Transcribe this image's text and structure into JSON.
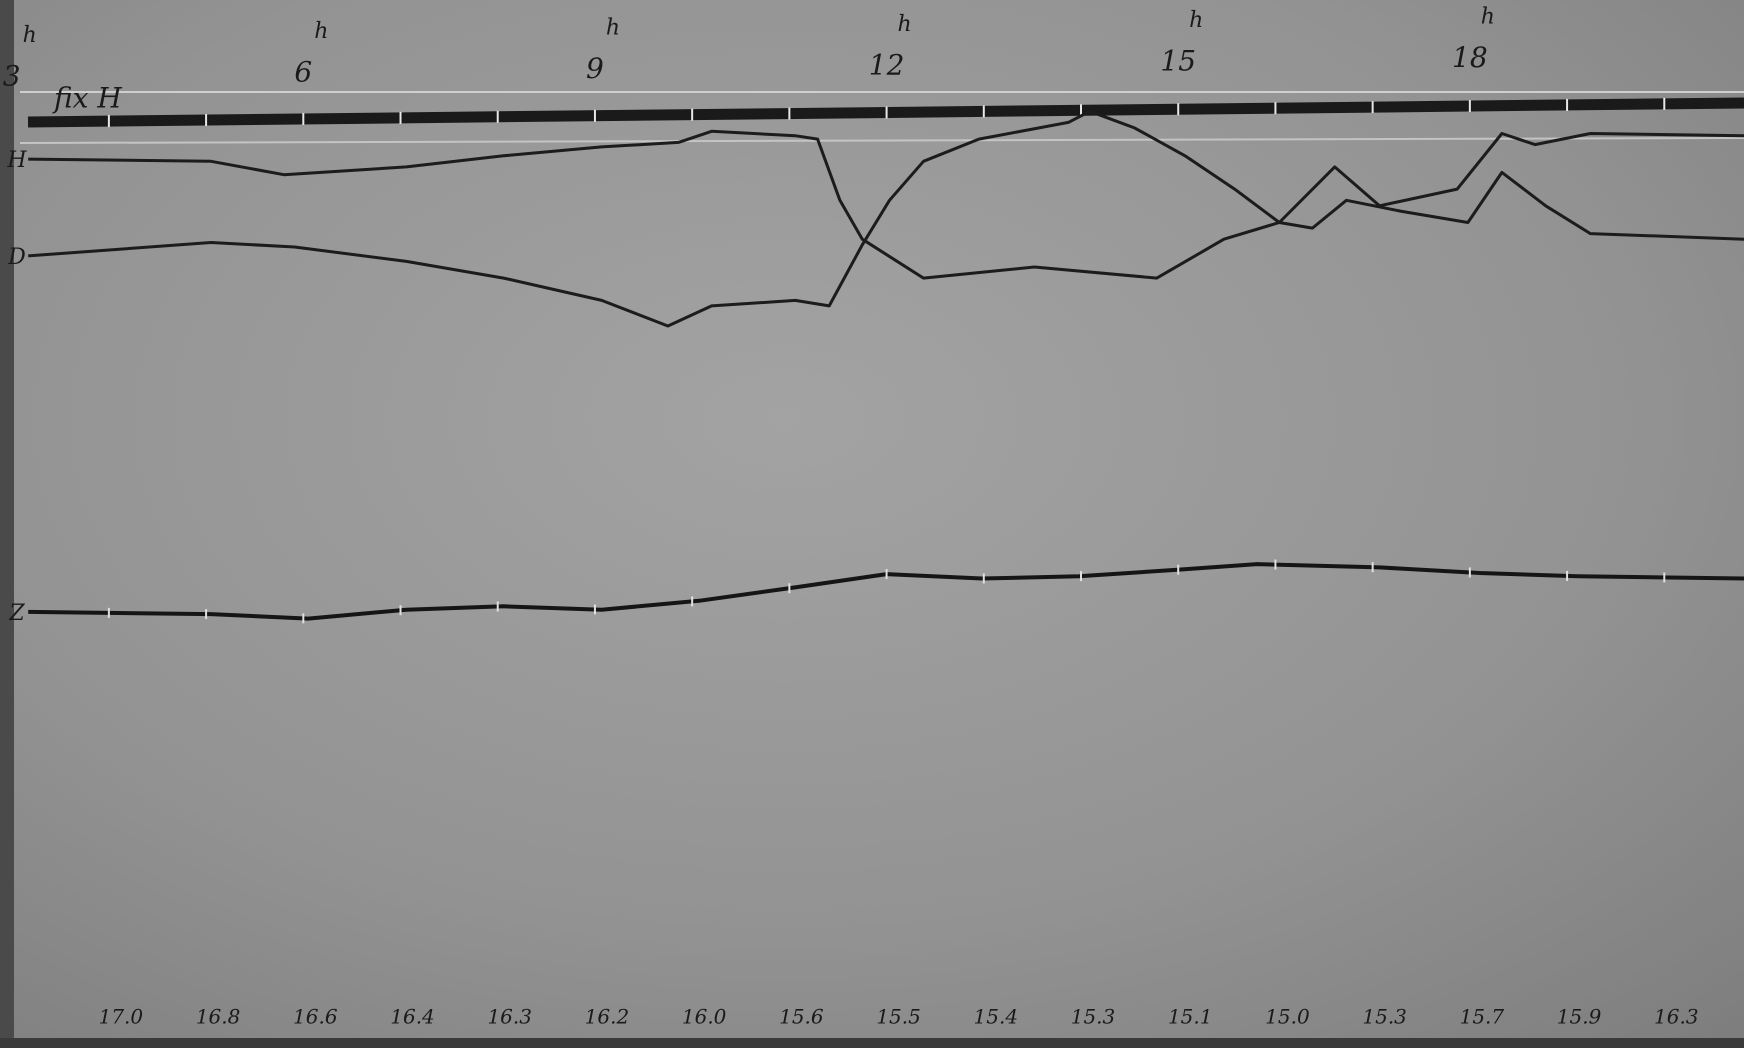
{
  "chart_data": {
    "type": "line",
    "fixed_line_label": "fix H",
    "x_unit_mark": "h",
    "xlim": [
      2.88,
      20.82
    ],
    "ylim": [
      0,
      942
    ],
    "xticks": [
      3,
      6,
      9,
      12,
      15,
      18
    ],
    "minor_xticks": [
      4,
      5,
      6,
      7,
      8,
      9,
      10,
      11,
      12,
      13,
      14,
      15,
      16,
      17,
      18,
      19,
      20
    ],
    "readings": [
      "17.0",
      "16.8",
      "16.6",
      "16.4",
      "16.3",
      "16.2",
      "16.0",
      "15.6",
      "15.5",
      "15.4",
      "15.3",
      "15.1",
      "15.0",
      "15.3",
      "15.7",
      "15.9",
      "16.3"
    ],
    "series": [
      {
        "name": "H",
        "color": "#1c1c1c",
        "x": [
          3.17,
          5.05,
          5.8,
          7.06,
          8.06,
          9.07,
          9.86,
          10.2,
          11.06,
          11.29,
          11.52,
          11.75,
          12.38,
          13.52,
          14.78,
          15.47,
          16.04,
          16.61,
          17.07,
          17.87,
          18.33,
          18.67,
          19.24,
          20.82
        ],
        "values": [
          799,
          797,
          785,
          792,
          802,
          810,
          814,
          824,
          820,
          817,
          762,
          727,
          692,
          702,
          692,
          727,
          742,
          792,
          757,
          772,
          822,
          812,
          822,
          820
        ]
      },
      {
        "name": "D",
        "color": "#1c1c1c",
        "x": [
          3.17,
          5.05,
          5.91,
          7.06,
          8.06,
          9.07,
          9.75,
          10.2,
          11.06,
          11.41,
          11.75,
          12.03,
          12.38,
          12.95,
          13.87,
          14.09,
          14.55,
          15.07,
          15.58,
          16.04,
          16.38,
          16.73,
          17.3,
          17.98,
          18.33,
          18.78,
          19.24,
          20.82
        ],
        "values": [
          712,
          724,
          720,
          707,
          692,
          672,
          649,
          667,
          672,
          667,
          722,
          762,
          797,
          817,
          832,
          842,
          827,
          802,
          772,
          742,
          737,
          762,
          752,
          742,
          787,
          757,
          732,
          727
        ]
      },
      {
        "name": "Z",
        "color": "#151515",
        "x": [
          3.17,
          5.05,
          6.05,
          7.06,
          8.06,
          9.07,
          10.07,
          11.06,
          12,
          12.98,
          13.98,
          15.01,
          15.81,
          17.07,
          18.1,
          19.11,
          20.82
        ],
        "values": [
          392,
          390,
          386,
          394,
          397,
          394,
          402,
          414,
          426,
          422,
          424,
          430,
          435,
          432,
          427,
          424,
          422
        ]
      }
    ]
  }
}
